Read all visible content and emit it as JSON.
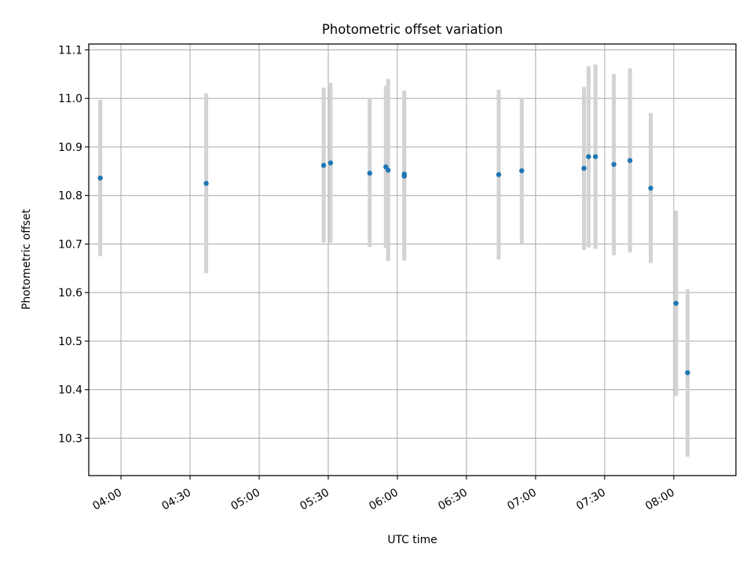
{
  "chart_data": {
    "type": "scatter",
    "title": "Photometric offset variation",
    "xlabel": "UTC time",
    "ylabel": "Photometric offset",
    "xlim": [
      "03:46",
      "08:27"
    ],
    "ylim": [
      10.223,
      11.112
    ],
    "x_ticks": [
      "04:00",
      "04:30",
      "05:00",
      "05:30",
      "06:00",
      "06:30",
      "07:00",
      "07:30",
      "08:00"
    ],
    "y_ticks": [
      "10.3",
      "10.4",
      "10.5",
      "10.6",
      "10.7",
      "10.8",
      "10.9",
      "11.0",
      "11.1"
    ],
    "grid": true,
    "series": [
      {
        "marker_color": "#1f77b4",
        "errorbar_color": "#d3d3d3",
        "points": [
          {
            "x": "03:51",
            "y": 10.836,
            "yerr_low": 10.675,
            "yerr_high": 10.997
          },
          {
            "x": "04:37",
            "y": 10.825,
            "yerr_low": 10.64,
            "yerr_high": 11.01
          },
          {
            "x": "05:28",
            "y": 10.862,
            "yerr_low": 10.703,
            "yerr_high": 11.022
          },
          {
            "x": "05:31",
            "y": 10.867,
            "yerr_low": 10.703,
            "yerr_high": 11.032
          },
          {
            "x": "05:48",
            "y": 10.846,
            "yerr_low": 10.694,
            "yerr_high": 11.0
          },
          {
            "x": "05:55",
            "y": 10.859,
            "yerr_low": 10.692,
            "yerr_high": 11.026
          },
          {
            "x": "05:56",
            "y": 10.852,
            "yerr_low": 10.665,
            "yerr_high": 11.04
          },
          {
            "x": "06:03",
            "y": 10.84,
            "yerr_low": 10.666,
            "yerr_high": 11.015
          },
          {
            "x": "06:03",
            "y": 10.844,
            "yerr_low": 10.673,
            "yerr_high": 11.016
          },
          {
            "x": "06:44",
            "y": 10.843,
            "yerr_low": 10.668,
            "yerr_high": 11.018
          },
          {
            "x": "06:54",
            "y": 10.851,
            "yerr_low": 10.7,
            "yerr_high": 11.0
          },
          {
            "x": "07:21",
            "y": 10.856,
            "yerr_low": 10.688,
            "yerr_high": 11.024
          },
          {
            "x": "07:23",
            "y": 10.88,
            "yerr_low": 10.693,
            "yerr_high": 11.066
          },
          {
            "x": "07:26",
            "y": 10.88,
            "yerr_low": 10.69,
            "yerr_high": 11.07
          },
          {
            "x": "07:34",
            "y": 10.864,
            "yerr_low": 10.677,
            "yerr_high": 11.05
          },
          {
            "x": "07:41",
            "y": 10.872,
            "yerr_low": 10.683,
            "yerr_high": 11.062
          },
          {
            "x": "07:50",
            "y": 10.815,
            "yerr_low": 10.661,
            "yerr_high": 10.97
          },
          {
            "x": "08:01",
            "y": 10.578,
            "yerr_low": 10.387,
            "yerr_high": 10.769
          },
          {
            "x": "08:06",
            "y": 10.435,
            "yerr_low": 10.262,
            "yerr_high": 10.607
          }
        ]
      }
    ]
  }
}
